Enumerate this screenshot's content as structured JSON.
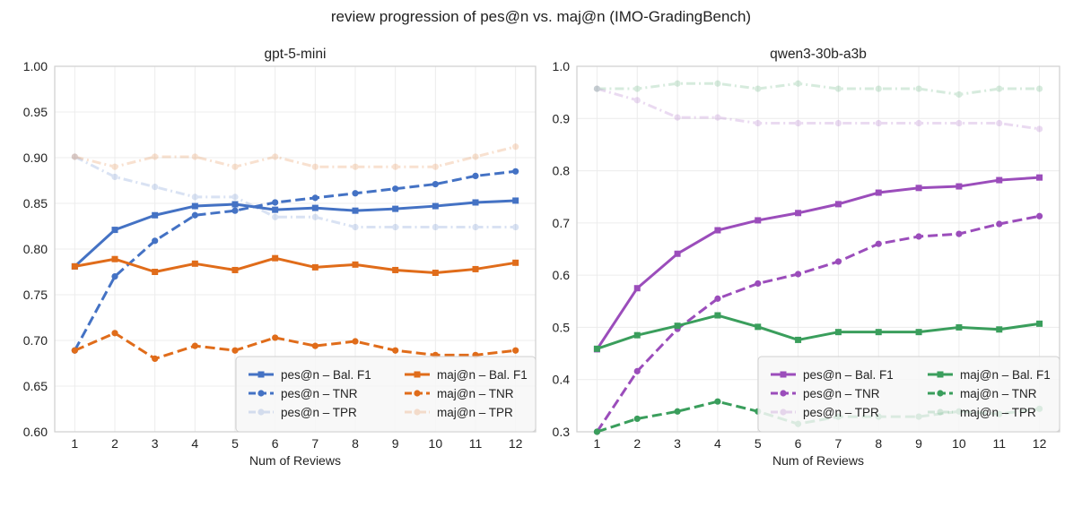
{
  "figure": {
    "suptitle": "review progression of pes@n vs. maj@n (IMO-GradingBench)"
  },
  "chart_data": [
    {
      "type": "line",
      "title": "gpt-5-mini",
      "xlabel": "Num of Reviews",
      "ylabel": "",
      "x": [
        1,
        2,
        3,
        4,
        5,
        6,
        7,
        8,
        9,
        10,
        11,
        12
      ],
      "xlim": [
        0.5,
        12.5
      ],
      "ylim": [
        0.6,
        1.0
      ],
      "yticks": [
        0.6,
        0.65,
        0.7,
        0.75,
        0.8,
        0.85,
        0.9,
        0.95,
        1.0
      ],
      "ytick_labels": [
        "0.60",
        "0.65",
        "0.70",
        "0.75",
        "0.80",
        "0.85",
        "0.90",
        "0.95",
        "1.00"
      ],
      "grid": true,
      "legend_position": "lower-right",
      "series": [
        {
          "name": "pes@n – Bal. F1",
          "color": "#4472c4",
          "dash": "solid",
          "marker": "square",
          "alpha": 1,
          "values": [
            0.781,
            0.821,
            0.837,
            0.847,
            0.849,
            0.843,
            0.845,
            0.842,
            0.844,
            0.847,
            0.851,
            0.853
          ]
        },
        {
          "name": "pes@n – TNR",
          "color": "#4472c4",
          "dash": "dashed",
          "marker": "circle",
          "alpha": 1,
          "values": [
            0.689,
            0.77,
            0.809,
            0.837,
            0.842,
            0.851,
            0.856,
            0.861,
            0.866,
            0.871,
            0.88,
            0.885
          ]
        },
        {
          "name": "pes@n – TPR",
          "color": "#4472c4",
          "dash": "dashdot",
          "marker": "circle",
          "alpha": 0.2,
          "values": [
            0.901,
            0.879,
            0.868,
            0.857,
            0.857,
            0.835,
            0.835,
            0.824,
            0.824,
            0.824,
            0.824,
            0.824
          ]
        },
        {
          "name": "maj@n – Bal. F1",
          "color": "#e06c1a",
          "dash": "solid",
          "marker": "square",
          "alpha": 1,
          "values": [
            0.781,
            0.789,
            0.775,
            0.784,
            0.777,
            0.79,
            0.78,
            0.783,
            0.777,
            0.774,
            0.778,
            0.785
          ]
        },
        {
          "name": "maj@n – TNR",
          "color": "#e06c1a",
          "dash": "dashed",
          "marker": "circle",
          "alpha": 1,
          "values": [
            0.689,
            0.708,
            0.68,
            0.694,
            0.689,
            0.703,
            0.694,
            0.699,
            0.689,
            0.684,
            0.684,
            0.689
          ]
        },
        {
          "name": "maj@n – TPR",
          "color": "#e06c1a",
          "dash": "dashdot",
          "marker": "circle",
          "alpha": 0.2,
          "values": [
            0.901,
            0.89,
            0.901,
            0.901,
            0.89,
            0.901,
            0.89,
            0.89,
            0.89,
            0.89,
            0.901,
            0.912
          ]
        }
      ]
    },
    {
      "type": "line",
      "title": "qwen3-30b-a3b",
      "xlabel": "Num of Reviews",
      "ylabel": "",
      "x": [
        1,
        2,
        3,
        4,
        5,
        6,
        7,
        8,
        9,
        10,
        11,
        12
      ],
      "xlim": [
        0.5,
        12.5
      ],
      "ylim": [
        0.3,
        1.0
      ],
      "yticks": [
        0.3,
        0.4,
        0.5,
        0.6,
        0.7,
        0.8,
        0.9,
        1.0
      ],
      "ytick_labels": [
        "0.3",
        "0.4",
        "0.5",
        "0.6",
        "0.7",
        "0.8",
        "0.9",
        "1.0"
      ],
      "grid": true,
      "legend_position": "lower-right",
      "series": [
        {
          "name": "pes@n – Bal. F1",
          "color": "#9b4dbb",
          "dash": "solid",
          "marker": "square",
          "alpha": 1,
          "values": [
            0.458,
            0.575,
            0.641,
            0.686,
            0.705,
            0.719,
            0.736,
            0.758,
            0.767,
            0.77,
            0.782,
            0.787
          ]
        },
        {
          "name": "pes@n – TNR",
          "color": "#9b4dbb",
          "dash": "dashed",
          "marker": "circle",
          "alpha": 1,
          "values": [
            0.3,
            0.416,
            0.497,
            0.555,
            0.584,
            0.602,
            0.626,
            0.66,
            0.674,
            0.679,
            0.698,
            0.713
          ]
        },
        {
          "name": "pes@n – TPR",
          "color": "#9b4dbb",
          "dash": "dashdot",
          "marker": "circle",
          "alpha": 0.2,
          "values": [
            0.957,
            0.935,
            0.902,
            0.902,
            0.891,
            0.891,
            0.891,
            0.891,
            0.891,
            0.891,
            0.891,
            0.88
          ]
        },
        {
          "name": "maj@n – Bal. F1",
          "color": "#3a9e5c",
          "dash": "solid",
          "marker": "square",
          "alpha": 1,
          "values": [
            0.459,
            0.485,
            0.503,
            0.523,
            0.501,
            0.476,
            0.491,
            0.491,
            0.491,
            0.5,
            0.496,
            0.507
          ]
        },
        {
          "name": "maj@n – TNR",
          "color": "#3a9e5c",
          "dash": "dashed",
          "marker": "circle",
          "alpha": 1,
          "values": [
            0.3,
            0.325,
            0.339,
            0.358,
            0.339,
            0.315,
            0.329,
            0.329,
            0.329,
            0.339,
            0.334,
            0.344
          ]
        },
        {
          "name": "maj@n – TPR",
          "color": "#3a9e5c",
          "dash": "dashdot",
          "marker": "circle",
          "alpha": 0.2,
          "values": [
            0.957,
            0.957,
            0.967,
            0.967,
            0.957,
            0.967,
            0.957,
            0.957,
            0.957,
            0.946,
            0.957,
            0.957
          ]
        }
      ]
    }
  ]
}
